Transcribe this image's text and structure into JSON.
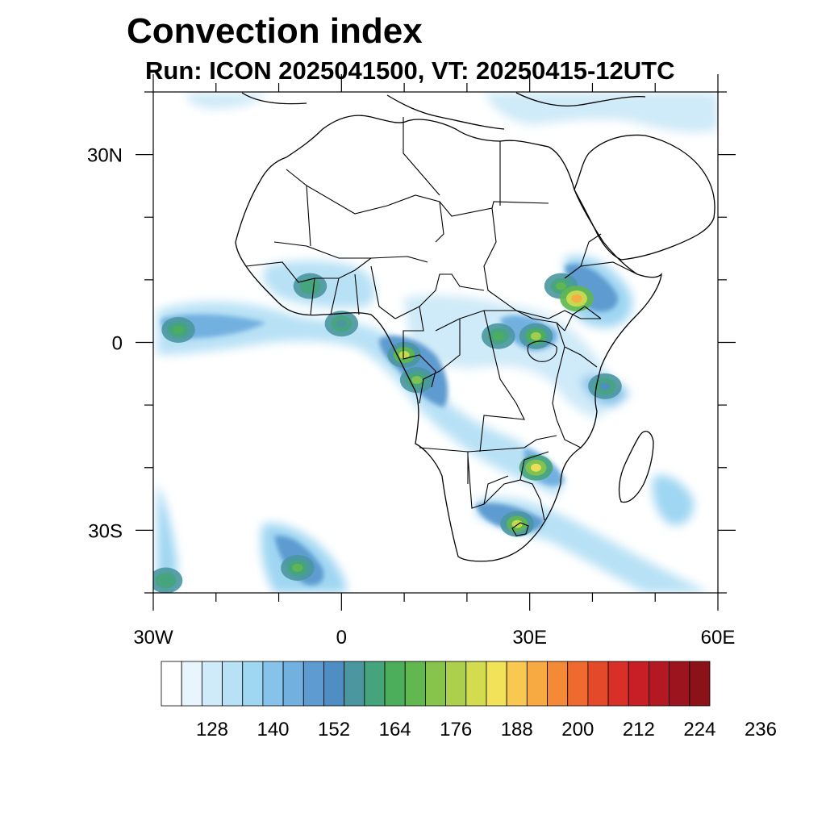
{
  "title": "Convection index",
  "subtitle": "Run: ICON 2025041500,  VT: 20250415-12UTC",
  "map": {
    "lon_range": [
      -30,
      60
    ],
    "lat_range": [
      -40,
      40
    ],
    "lat_labels": [
      {
        "lat": 30,
        "text": "30N"
      },
      {
        "lat": 0,
        "text": "0"
      },
      {
        "lat": -30,
        "text": "30S"
      }
    ],
    "lon_labels": [
      {
        "lon": -30,
        "text": "30W"
      },
      {
        "lon": 0,
        "text": "0"
      },
      {
        "lon": 30,
        "text": "30E"
      },
      {
        "lon": 60,
        "text": "60E"
      }
    ]
  },
  "colorbar": {
    "colors": [
      "#ffffff",
      "#e8f5fc",
      "#cfeaf8",
      "#b8e1f5",
      "#9fd6f2",
      "#86c3ea",
      "#72b0e0",
      "#5d9bd0",
      "#4f8ec2",
      "#4a97a0",
      "#46a47c",
      "#4cae5a",
      "#60b84e",
      "#86c44c",
      "#acd04c",
      "#d2dc4e",
      "#f2e25a",
      "#f8c850",
      "#f8aa42",
      "#f48a36",
      "#ee6a2e",
      "#e44a2a",
      "#d83028",
      "#c81e26",
      "#b41822",
      "#9c141e",
      "#8a1218"
    ],
    "labels": [
      "128",
      "140",
      "152",
      "164",
      "176",
      "188",
      "200",
      "212",
      "224",
      "236"
    ],
    "label_start_index": 1,
    "label_step": 3
  },
  "convection_cells": [
    {
      "lon": 35,
      "lat": 9,
      "level": 12
    },
    {
      "lon": 37.5,
      "lat": 7,
      "level": 18
    },
    {
      "lon": 31,
      "lat": 1,
      "level": 14
    },
    {
      "lon": 25,
      "lat": 1,
      "level": 11
    },
    {
      "lon": 10,
      "lat": -2,
      "level": 15
    },
    {
      "lon": 12,
      "lat": -6,
      "level": 13
    },
    {
      "lon": 31,
      "lat": -20,
      "level": 16
    },
    {
      "lon": 28,
      "lat": -29,
      "level": 15
    },
    {
      "lon": -7,
      "lat": -36,
      "level": 12
    },
    {
      "lon": -26,
      "lat": 2,
      "level": 11
    },
    {
      "lon": -5,
      "lat": 9,
      "level": 10
    },
    {
      "lon": 42,
      "lat": -7,
      "level": 8
    },
    {
      "lon": 0,
      "lat": 3,
      "level": 9
    },
    {
      "lon": -28,
      "lat": -38,
      "level": 10
    }
  ]
}
